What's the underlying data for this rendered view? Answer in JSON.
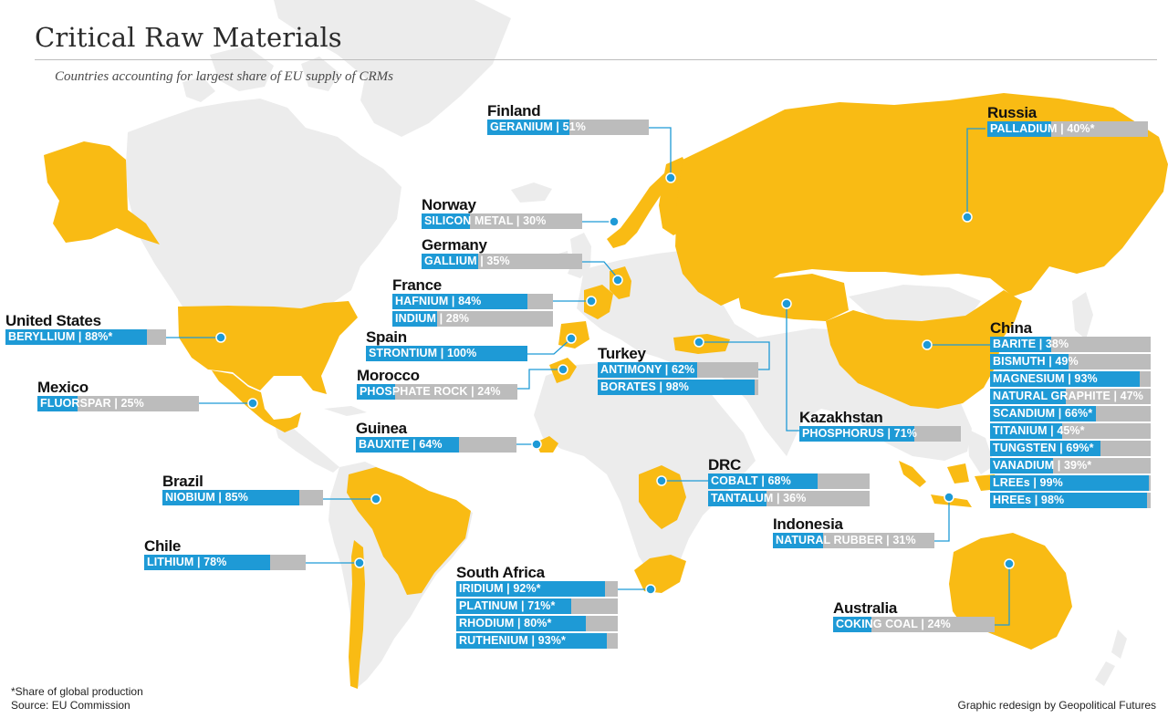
{
  "title": "Critical Raw Materials",
  "subtitle": "Countries accounting for largest share of EU supply of CRMs",
  "colors": {
    "highlight_country": "#f9bb14",
    "land": "#ececec",
    "bar_fill": "#1e9ad6",
    "bar_track": "#bcbcbc",
    "leader_line": "#1e9ad6"
  },
  "countries": [
    {
      "name": "United States",
      "materials": [
        {
          "label": "BERYLLIUM | 88%*",
          "share": 88
        }
      ]
    },
    {
      "name": "Mexico",
      "materials": [
        {
          "label": "FLUORSPAR | 25%",
          "share": 25
        }
      ]
    },
    {
      "name": "Brazil",
      "materials": [
        {
          "label": "NIOBIUM | 85%",
          "share": 85
        }
      ]
    },
    {
      "name": "Chile",
      "materials": [
        {
          "label": "LITHIUM | 78%",
          "share": 78
        }
      ]
    },
    {
      "name": "Finland",
      "materials": [
        {
          "label": "GERANIUM | 51%",
          "share": 51
        }
      ]
    },
    {
      "name": "Norway",
      "materials": [
        {
          "label": "SILICON METAL | 30%",
          "share": 30
        }
      ]
    },
    {
      "name": "Germany",
      "materials": [
        {
          "label": "GALLIUM | 35%",
          "share": 35
        }
      ]
    },
    {
      "name": "France",
      "materials": [
        {
          "label": "HAFNIUM | 84%",
          "share": 84
        },
        {
          "label": "INDIUM | 28%",
          "share": 28
        }
      ]
    },
    {
      "name": "Spain",
      "materials": [
        {
          "label": "STRONTIUM | 100%",
          "share": 100
        }
      ]
    },
    {
      "name": "Morocco",
      "materials": [
        {
          "label": "PHOSPHATE ROCK | 24%",
          "share": 24
        }
      ]
    },
    {
      "name": "Guinea",
      "materials": [
        {
          "label": "BAUXITE | 64%",
          "share": 64
        }
      ]
    },
    {
      "name": "South Africa",
      "materials": [
        {
          "label": "IRIDIUM | 92%*",
          "share": 92
        },
        {
          "label": "PLATINUM | 71%*",
          "share": 71
        },
        {
          "label": "RHODIUM | 80%*",
          "share": 80
        },
        {
          "label": "RUTHENIUM | 93%*",
          "share": 93
        }
      ]
    },
    {
      "name": "Turkey",
      "materials": [
        {
          "label": "ANTIMONY | 62%",
          "share": 62
        },
        {
          "label": "BORATES | 98%",
          "share": 98
        }
      ]
    },
    {
      "name": "DRC",
      "materials": [
        {
          "label": "COBALT | 68%",
          "share": 68
        },
        {
          "label": "TANTALUM | 36%",
          "share": 36
        }
      ]
    },
    {
      "name": "Kazakhstan",
      "materials": [
        {
          "label": "PHOSPHORUS | 71%",
          "share": 71
        }
      ]
    },
    {
      "name": "Russia",
      "materials": [
        {
          "label": "PALLADIUM | 40%*",
          "share": 40
        }
      ]
    },
    {
      "name": "China",
      "materials": [
        {
          "label": "BARITE | 38%",
          "share": 38
        },
        {
          "label": "BISMUTH | 49%",
          "share": 49
        },
        {
          "label": "MAGNESIUM | 93%",
          "share": 93
        },
        {
          "label": "NATURAL GRAPHITE | 47%",
          "share": 47
        },
        {
          "label": "SCANDIUM | 66%*",
          "share": 66
        },
        {
          "label": "TITANIUM | 45%*",
          "share": 45
        },
        {
          "label": "TUNGSTEN | 69%*",
          "share": 69
        },
        {
          "label": "VANADIUM | 39%*",
          "share": 39
        },
        {
          "label": "LREEs | 99%",
          "share": 99
        },
        {
          "label": "HREEs | 98%",
          "share": 98
        }
      ]
    },
    {
      "name": "Indonesia",
      "materials": [
        {
          "label": "NATURAL RUBBER | 31%",
          "share": 31
        }
      ]
    },
    {
      "name": "Australia",
      "materials": [
        {
          "label": "COKING COAL | 24%",
          "share": 24
        }
      ]
    }
  ],
  "footnote": "*Share of global production",
  "source": "Source: EU Commission",
  "credit": "Graphic redesign by Geopolitical Futures"
}
